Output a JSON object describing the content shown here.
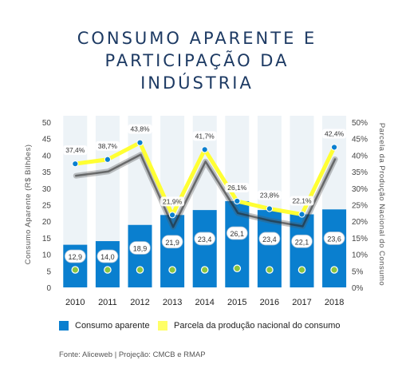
{
  "title_lines": [
    "CONSUMO APARENTE E",
    "PARTICIPAÇÃO DA",
    "INDÚSTRIA"
  ],
  "source": "Fonte: Aliceweb | Projeção: CMCB e RMAP",
  "colors": {
    "bar": "#0a7fcf",
    "bar_bg": "#edf3f7",
    "line": "#ffff33",
    "title": "#1d3a63"
  },
  "chart_data": {
    "type": "bar",
    "categories": [
      "2010",
      "2011",
      "2012",
      "2013",
      "2014",
      "2015",
      "2016",
      "2017",
      "2018"
    ],
    "series": [
      {
        "name": "Consumo aparente",
        "type": "bar",
        "axis": "left",
        "values": [
          12.9,
          14.0,
          18.9,
          21.9,
          23.4,
          26.1,
          23.4,
          22.1,
          23.6
        ],
        "labels": [
          "12,9",
          "14,0",
          "18,9",
          "21,9",
          "23,4",
          "26,1",
          "23,4",
          "22,1",
          "23,6"
        ]
      },
      {
        "name": "Parcela da produção nacional do consumo",
        "type": "line",
        "axis": "right",
        "values": [
          37.4,
          38.7,
          43.8,
          21.9,
          41.7,
          26.1,
          23.8,
          22.1,
          42.4
        ],
        "labels": [
          "37,4%",
          "38,7%",
          "43,8%",
          "21,9%",
          "41,7%",
          "26,1%",
          "23,8%",
          "22,1%",
          "42,4%"
        ]
      }
    ],
    "ylabel": "Consumo Aparente (R$ Bilhões)",
    "ylabel_right": "Parcela da Produção Nacional do Consumo",
    "ylim": [
      0,
      50
    ],
    "ylim_right": [
      0,
      50
    ],
    "yticks": [
      "0",
      "5",
      "10",
      "15",
      "20",
      "25",
      "30",
      "35",
      "40",
      "45",
      "50"
    ],
    "yticks_right": [
      "0%",
      "5%",
      "10%",
      "15%",
      "20%",
      "25%",
      "30%",
      "35%",
      "40%",
      "45%",
      "50%"
    ],
    "grid": false,
    "legend_position": "bottom"
  }
}
